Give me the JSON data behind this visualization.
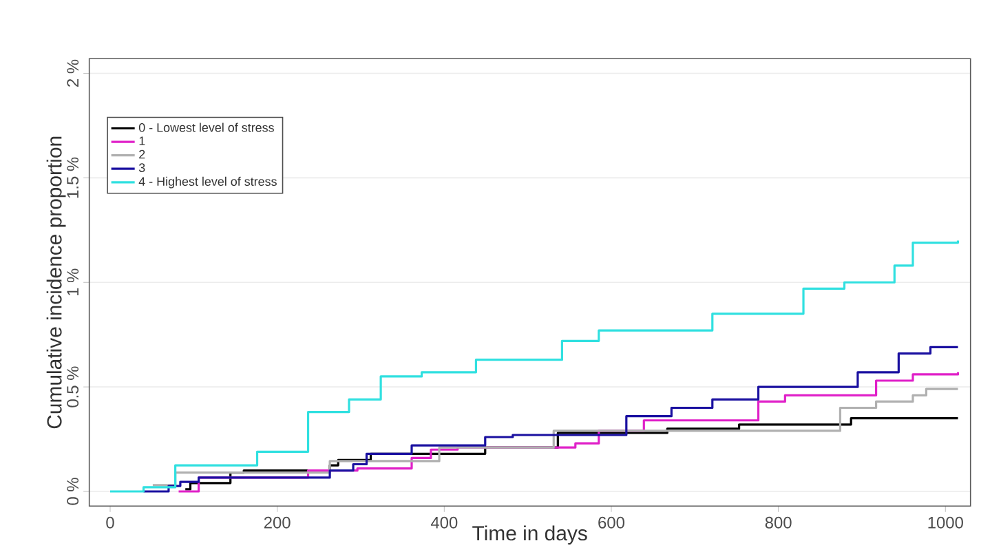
{
  "chart_data": {
    "type": "step",
    "xlabel": "Time in days",
    "ylabel": "Cumulative incidence proportion",
    "xlim": [
      -25,
      1030
    ],
    "ylim": [
      -0.07,
      2.07
    ],
    "xticks": [
      0,
      200,
      400,
      600,
      800,
      1000
    ],
    "yticks": [
      {
        "value": 0,
        "label": "0 %"
      },
      {
        "value": 0.5,
        "label": "0.5 %"
      },
      {
        "value": 1,
        "label": "1 %"
      },
      {
        "value": 1.5,
        "label": "1.5 %"
      },
      {
        "value": 2,
        "label": "2 %"
      }
    ],
    "grid": "y",
    "legend": "top left",
    "line_style": "solid",
    "series": [
      {
        "name": "0 - Lowest level of stress",
        "color": "#000000",
        "x": [
          90,
          96,
          144,
          160,
          263,
          273,
          312,
          427,
          449,
          536,
          667,
          753,
          887,
          1015
        ],
        "values": [
          0.01,
          0.04,
          0.09,
          0.1,
          0.125,
          0.15,
          0.18,
          0.18,
          0.21,
          0.28,
          0.3,
          0.32,
          0.35,
          0.35
        ]
      },
      {
        "name": "1",
        "color": "#e020c8",
        "x": [
          82,
          106,
          237,
          296,
          361,
          384,
          416,
          557,
          585,
          639,
          776,
          808,
          917,
          961,
          1015
        ],
        "values": [
          0,
          0.066,
          0.1,
          0.11,
          0.16,
          0.2,
          0.21,
          0.23,
          0.29,
          0.34,
          0.43,
          0.46,
          0.53,
          0.56,
          0.57
        ]
      },
      {
        "name": "2",
        "color": "#b0b0b0",
        "x": [
          51,
          78,
          263,
          394,
          531,
          874,
          917,
          961,
          977,
          1015
        ],
        "values": [
          0.03,
          0.09,
          0.145,
          0.21,
          0.29,
          0.4,
          0.43,
          0.46,
          0.49,
          0.49
        ]
      },
      {
        "name": "3",
        "color": "#1a10a0",
        "x": [
          40,
          70,
          84,
          106,
          263,
          291,
          307,
          361,
          449,
          482,
          618,
          672,
          721,
          776,
          895,
          944,
          982,
          1015
        ],
        "values": [
          0,
          0.026,
          0.046,
          0.066,
          0.1,
          0.13,
          0.18,
          0.22,
          0.26,
          0.27,
          0.36,
          0.4,
          0.44,
          0.5,
          0.57,
          0.66,
          0.69,
          0.69
        ]
      },
      {
        "name": "4 - Highest level of stress",
        "color": "#30e0e0",
        "x": [
          0,
          40,
          78,
          176,
          237,
          286,
          324,
          373,
          438,
          541,
          585,
          721,
          830,
          879,
          939,
          961,
          1015
        ],
        "values": [
          0,
          0.02,
          0.125,
          0.19,
          0.38,
          0.44,
          0.55,
          0.57,
          0.63,
          0.72,
          0.77,
          0.85,
          0.97,
          1.0,
          1.08,
          1.19,
          1.2
        ]
      }
    ]
  }
}
